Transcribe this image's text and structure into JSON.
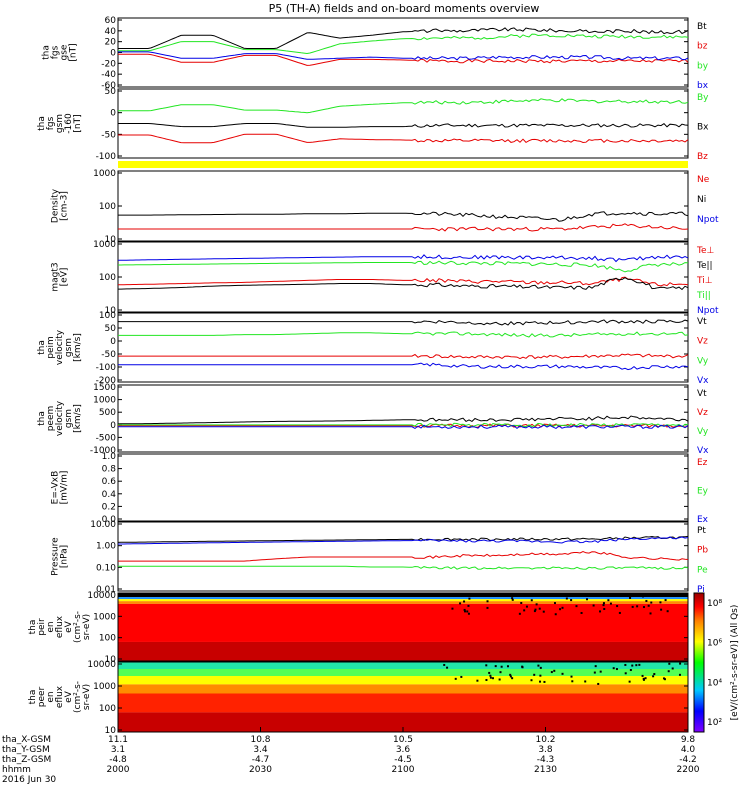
{
  "title": "P5 (TH-A) fields and on-board moments overview",
  "footer": {
    "rows": [
      {
        "label": "tha_X-GSM",
        "values": [
          "11.1",
          "10.8",
          "10.5",
          "10.2",
          "9.8"
        ]
      },
      {
        "label": "tha_Y-GSM",
        "values": [
          "3.1",
          "3.4",
          "3.6",
          "3.8",
          "4.0"
        ]
      },
      {
        "label": "tha_Z-GSM",
        "values": [
          "-4.8",
          "-4.7",
          "-4.5",
          "-4.3",
          "-4.2"
        ]
      },
      {
        "label": "hhmm",
        "values": [
          "2000",
          "2030",
          "2100",
          "2130",
          "2200"
        ]
      }
    ],
    "date": "2016 Jun 30"
  },
  "colorbar": {
    "ticks": [
      "10⁸",
      "10⁶",
      "10⁴",
      "10²"
    ],
    "label": "[eV/(cm²-s-sr-eV)] (All Qs)"
  },
  "colors": {
    "black": "#000000",
    "red": "#e60000",
    "green": "#22e622",
    "blue": "#0000e6",
    "bar": "#ffff00"
  },
  "chart_data": [
    {
      "type": "line",
      "ylabel": [
        "tha",
        "fgs",
        "gse",
        "[nT]"
      ],
      "ylim": [
        -60,
        60
      ],
      "yticks": [
        "60",
        "40",
        "20",
        "0",
        "-20",
        "-40",
        "-60"
      ],
      "series": [
        {
          "name": "Bt",
          "color": "black",
          "values": [
            7,
            7,
            30,
            30,
            7,
            7,
            35,
            25,
            30,
            36,
            38,
            38,
            40,
            40,
            38,
            36,
            38,
            35,
            36
          ]
        },
        {
          "name": "bz",
          "color": "red",
          "values": [
            -3,
            -3,
            -17,
            -17,
            -5,
            -5,
            -23,
            -12,
            -12,
            -13,
            -15,
            -15,
            -15,
            -15,
            -15,
            -15,
            -15,
            -15,
            -15
          ]
        },
        {
          "name": "by",
          "color": "green",
          "values": [
            3,
            3,
            19,
            19,
            5,
            5,
            -2,
            15,
            20,
            24,
            25,
            25,
            27,
            30,
            30,
            28,
            28,
            27,
            27
          ]
        },
        {
          "name": "bx",
          "color": "blue",
          "values": [
            1,
            1,
            -10,
            -10,
            -2,
            -2,
            -12,
            -10,
            -8,
            -10,
            -10,
            -10,
            -8,
            -8,
            -8,
            -8,
            -10,
            -10,
            -10
          ]
        }
      ]
    },
    {
      "type": "line",
      "ylabel": [
        "tha",
        "fgs",
        "gsm",
        "-160",
        "[nT]"
      ],
      "ylim": [
        -120,
        60
      ],
      "yticks": [
        "50",
        "0",
        "-50",
        "-100"
      ],
      "series": [
        {
          "name": "By",
          "color": "green",
          "values": [
            3,
            3,
            19,
            19,
            5,
            5,
            -2,
            15,
            20,
            24,
            25,
            25,
            27,
            30,
            30,
            28,
            28,
            27,
            27
          ]
        },
        {
          "name": "Bx",
          "color": "black",
          "values": [
            -30,
            -30,
            -38,
            -38,
            -30,
            -30,
            -40,
            -40,
            -38,
            -38,
            -35,
            -35,
            -35,
            -35,
            -35,
            -35,
            -35,
            -35,
            -35
          ]
        },
        {
          "name": "Bz",
          "color": "red",
          "values": [
            -60,
            -60,
            -80,
            -80,
            -58,
            -58,
            -80,
            -70,
            -72,
            -73,
            -75,
            -75,
            -75,
            -75,
            -75,
            -75,
            -75,
            -75,
            -75
          ]
        }
      ]
    },
    {
      "type": "line",
      "ylabel": [
        "Density",
        "[cm-3]"
      ],
      "ylim": [
        10,
        1000
      ],
      "log": true,
      "yticks": [
        "1000",
        "100",
        "10"
      ],
      "series": [
        {
          "name": "Ne",
          "color": "red",
          "values": [
            0
          ]
        },
        {
          "name": "Ni",
          "color": "black",
          "values": [
            55,
            55,
            56,
            57,
            58,
            58,
            60,
            60,
            62,
            62,
            60,
            55,
            50,
            45,
            40,
            60,
            65,
            60,
            60
          ]
        },
        {
          "name": "Npot",
          "color": "blue",
          "values": [
            0
          ]
        },
        {
          "name": "red-trace",
          "color": "red",
          "values": [
            22,
            22,
            22,
            22,
            22,
            22,
            22,
            22,
            22,
            22,
            22,
            22,
            22,
            22,
            22,
            25,
            28,
            25,
            22
          ]
        }
      ]
    },
    {
      "type": "line",
      "ylabel": [
        "magt3",
        "[eV]"
      ],
      "ylim": [
        10,
        1000
      ],
      "log": true,
      "yticks": [
        "1000",
        "100",
        "10"
      ],
      "series": [
        {
          "name": "Te⊥",
          "color": "red",
          "values": [
            60,
            62,
            65,
            68,
            70,
            75,
            80,
            85,
            85,
            80,
            80,
            75,
            75,
            70,
            70,
            65,
            90,
            60,
            65
          ]
        },
        {
          "name": "Te||",
          "color": "black",
          "values": [
            45,
            47,
            50,
            55,
            58,
            60,
            62,
            65,
            65,
            60,
            60,
            55,
            55,
            52,
            50,
            50,
            100,
            45,
            50
          ]
        },
        {
          "name": "Ti⊥",
          "color": "red",
          "values": [
            0
          ]
        },
        {
          "name": "Ti||",
          "color": "green",
          "values": [
            220,
            225,
            230,
            235,
            240,
            245,
            250,
            255,
            260,
            260,
            255,
            250,
            245,
            240,
            230,
            220,
            150,
            230,
            230
          ]
        },
        {
          "name": "Npot",
          "color": "blue",
          "values": [
            300,
            310,
            320,
            330,
            340,
            350,
            360,
            370,
            380,
            380,
            380,
            370,
            370,
            360,
            360,
            350,
            300,
            380,
            380
          ]
        }
      ]
    },
    {
      "type": "line",
      "ylabel": [
        "tha",
        "peim",
        "velocity",
        "gsm",
        "[km/s]"
      ],
      "ylim": [
        -200,
        200
      ],
      "yticks": [
        "100",
        "50",
        "0",
        "-50",
        "-100",
        "-200"
      ],
      "series": [
        {
          "name": "Vt",
          "color": "black",
          "values": [
            150,
            150,
            150,
            150,
            150,
            150,
            150,
            150,
            150,
            150,
            150,
            145,
            140,
            140,
            145,
            150,
            150,
            150,
            150
          ]
        },
        {
          "name": "Vz",
          "color": "red",
          "values": [
            -50,
            -50,
            -50,
            -50,
            -50,
            -50,
            -50,
            -50,
            -50,
            -50,
            -50,
            -55,
            -55,
            -55,
            -55,
            -50,
            -45,
            -50,
            -50
          ]
        },
        {
          "name": "Vy",
          "color": "green",
          "values": [
            70,
            70,
            70,
            70,
            75,
            75,
            80,
            85,
            85,
            80,
            80,
            80,
            75,
            70,
            70,
            75,
            80,
            80,
            80
          ]
        },
        {
          "name": "Vx",
          "color": "blue",
          "values": [
            -100,
            -100,
            -100,
            -100,
            -100,
            -100,
            -100,
            -100,
            -100,
            -100,
            -100,
            -110,
            -110,
            -110,
            -110,
            -115,
            -120,
            -110,
            -110
          ]
        }
      ]
    },
    {
      "type": "line",
      "ylabel": [
        "tha",
        "peem",
        "velocity",
        "gsm",
        "[km/s]"
      ],
      "ylim": [
        -1000,
        1500
      ],
      "yticks": [
        "1500",
        "1000",
        "500",
        "0",
        "-500",
        "-1000"
      ],
      "series": [
        {
          "name": "Vt",
          "color": "black",
          "values": [
            50,
            60,
            80,
            100,
            120,
            140,
            150,
            160,
            180,
            200,
            200,
            200,
            200,
            220,
            240,
            250,
            300,
            250,
            200
          ]
        },
        {
          "name": "Vz",
          "color": "red",
          "values": [
            -20,
            -20,
            -20,
            -20,
            -20,
            -20,
            -20,
            -20,
            -20,
            -20,
            -20,
            -20,
            -20,
            -20,
            -20,
            -20,
            -20,
            -20,
            -20
          ]
        },
        {
          "name": "Vy",
          "color": "green",
          "values": [
            10,
            10,
            10,
            10,
            10,
            10,
            10,
            10,
            10,
            10,
            10,
            10,
            10,
            10,
            10,
            10,
            10,
            10,
            10
          ]
        },
        {
          "name": "Vx",
          "color": "blue",
          "values": [
            -60,
            -60,
            -60,
            -60,
            -60,
            -60,
            -60,
            -60,
            -60,
            -60,
            -60,
            -60,
            -60,
            -60,
            -60,
            -60,
            -60,
            -60,
            -60
          ]
        }
      ]
    },
    {
      "type": "line",
      "ylabel": [
        "E=-VxB",
        "[mV/m]"
      ],
      "ylim": [
        0,
        1
      ],
      "yticks": [
        "1.0",
        "0.8",
        "0.6",
        "0.4",
        "0.2",
        "0.0"
      ],
      "series": [
        {
          "name": "Ez",
          "color": "red",
          "values": [
            0
          ]
        },
        {
          "name": "Ey",
          "color": "green",
          "values": [
            0
          ]
        },
        {
          "name": "Ex",
          "color": "blue",
          "values": [
            0
          ]
        }
      ]
    },
    {
      "type": "line",
      "ylabel": [
        "Pressure",
        "[nPa]"
      ],
      "ylim": [
        0.01,
        10
      ],
      "log": true,
      "yticks": [
        "10.00",
        "1.00",
        "0.10",
        "0.01"
      ],
      "series": [
        {
          "name": "Pt",
          "color": "black",
          "values": [
            1.3,
            1.35,
            1.4,
            1.45,
            1.5,
            1.55,
            1.6,
            1.65,
            1.7,
            1.75,
            1.8,
            1.8,
            1.8,
            1.8,
            1.8,
            1.8,
            2.0,
            2.1,
            2.1
          ]
        },
        {
          "name": "Pb",
          "color": "red",
          "values": [
            0.2,
            0.2,
            0.2,
            0.2,
            0.2,
            0.25,
            0.3,
            0.3,
            0.3,
            0.3,
            0.3,
            0.35,
            0.35,
            0.4,
            0.4,
            0.5,
            0.3,
            0.25,
            0.25
          ]
        },
        {
          "name": "Pe",
          "color": "green",
          "values": [
            0.12,
            0.12,
            0.12,
            0.12,
            0.12,
            0.12,
            0.12,
            0.12,
            0.11,
            0.11,
            0.1,
            0.1,
            0.1,
            0.1,
            0.1,
            0.1,
            0.1,
            0.1,
            0.1
          ]
        },
        {
          "name": "Pi",
          "color": "blue",
          "values": [
            1.1,
            1.15,
            1.2,
            1.25,
            1.3,
            1.35,
            1.4,
            1.45,
            1.5,
            1.55,
            1.55,
            1.5,
            1.5,
            1.45,
            1.4,
            1.4,
            1.8,
            2.0,
            2.0
          ]
        }
      ]
    },
    {
      "type": "heatmap",
      "ylabel": [
        "tha",
        "peir",
        "en",
        "eflux",
        "eV",
        "(cm²-s-",
        "sr-eV)"
      ],
      "yticks": [
        "10000",
        "1000",
        "100",
        "10"
      ]
    },
    {
      "type": "heatmap",
      "ylabel": [
        "tha",
        "peer",
        "en",
        "eflux",
        "eV",
        "(cm²-s-",
        "sr-eV)"
      ],
      "yticks": [
        "10000",
        "1000",
        "100",
        "10"
      ]
    }
  ]
}
